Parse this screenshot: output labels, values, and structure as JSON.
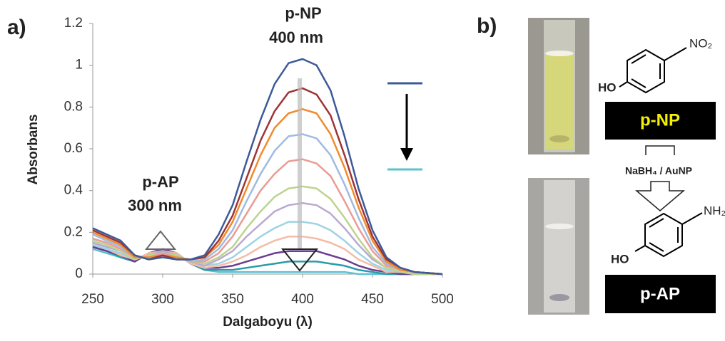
{
  "chart_data": {
    "type": "line",
    "panel_label": "a)",
    "annotations": [
      "p-NP",
      "400 nm",
      "p-AP",
      "300 nm"
    ],
    "xlabel": "Dalgaboyu (λ)",
    "ylabel": "Absorbans",
    "x": [
      250,
      260,
      270,
      280,
      290,
      300,
      310,
      320,
      330,
      340,
      350,
      360,
      370,
      380,
      390,
      400,
      410,
      420,
      430,
      440,
      450,
      460,
      470,
      480,
      500
    ],
    "xlim": [
      250,
      500
    ],
    "xticks": [
      250,
      300,
      350,
      400,
      450,
      500
    ],
    "ylim": [
      0,
      1.2
    ],
    "yticks": [
      0,
      0.2,
      0.4,
      0.6,
      0.8,
      1,
      1.2
    ],
    "series": [
      {
        "color": "#3b5b98",
        "values": [
          0.22,
          0.19,
          0.16,
          0.09,
          0.07,
          0.08,
          0.07,
          0.07,
          0.09,
          0.19,
          0.33,
          0.54,
          0.74,
          0.91,
          1.01,
          1.03,
          1.0,
          0.88,
          0.66,
          0.41,
          0.21,
          0.08,
          0.03,
          0.01,
          0
        ]
      },
      {
        "color": "#9e3434",
        "values": [
          0.21,
          0.18,
          0.15,
          0.09,
          0.07,
          0.09,
          0.07,
          0.07,
          0.08,
          0.16,
          0.28,
          0.46,
          0.64,
          0.78,
          0.87,
          0.89,
          0.86,
          0.76,
          0.57,
          0.36,
          0.18,
          0.07,
          0.03,
          0.01,
          0
        ]
      },
      {
        "color": "#f18a2e",
        "values": [
          0.2,
          0.17,
          0.14,
          0.08,
          0.08,
          0.09,
          0.08,
          0.07,
          0.08,
          0.14,
          0.25,
          0.41,
          0.57,
          0.7,
          0.77,
          0.79,
          0.77,
          0.67,
          0.51,
          0.32,
          0.16,
          0.06,
          0.02,
          0.01,
          0
        ]
      },
      {
        "color": "#9fbbe2",
        "values": [
          0.19,
          0.16,
          0.13,
          0.08,
          0.08,
          0.09,
          0.08,
          0.06,
          0.07,
          0.12,
          0.21,
          0.35,
          0.48,
          0.59,
          0.66,
          0.67,
          0.65,
          0.57,
          0.43,
          0.27,
          0.13,
          0.05,
          0.02,
          0.01,
          0
        ]
      },
      {
        "color": "#e99c93",
        "values": [
          0.17,
          0.15,
          0.12,
          0.08,
          0.08,
          0.1,
          0.08,
          0.06,
          0.06,
          0.1,
          0.18,
          0.29,
          0.4,
          0.48,
          0.54,
          0.55,
          0.53,
          0.47,
          0.35,
          0.22,
          0.11,
          0.04,
          0.02,
          0.01,
          0
        ]
      },
      {
        "color": "#bcd38e",
        "values": [
          0.16,
          0.14,
          0.11,
          0.07,
          0.09,
          0.1,
          0.09,
          0.06,
          0.05,
          0.08,
          0.13,
          0.22,
          0.3,
          0.37,
          0.41,
          0.42,
          0.41,
          0.36,
          0.27,
          0.17,
          0.08,
          0.03,
          0.01,
          0,
          0
        ]
      },
      {
        "color": "#b9a9d2",
        "values": [
          0.15,
          0.13,
          0.11,
          0.07,
          0.09,
          0.11,
          0.09,
          0.06,
          0.04,
          0.07,
          0.11,
          0.18,
          0.24,
          0.3,
          0.33,
          0.34,
          0.33,
          0.29,
          0.22,
          0.14,
          0.07,
          0.03,
          0.01,
          0,
          0
        ]
      },
      {
        "color": "#9dd3e3",
        "values": [
          0.14,
          0.12,
          0.1,
          0.07,
          0.09,
          0.11,
          0.09,
          0.06,
          0.04,
          0.05,
          0.08,
          0.13,
          0.18,
          0.22,
          0.25,
          0.25,
          0.24,
          0.21,
          0.16,
          0.1,
          0.05,
          0.02,
          0.01,
          0,
          0
        ]
      },
      {
        "color": "#f4bca4",
        "values": [
          0.14,
          0.12,
          0.09,
          0.07,
          0.1,
          0.11,
          0.1,
          0.05,
          0.03,
          0.04,
          0.06,
          0.09,
          0.13,
          0.16,
          0.18,
          0.18,
          0.17,
          0.15,
          0.12,
          0.07,
          0.04,
          0.01,
          0.01,
          0,
          0
        ]
      },
      {
        "color": "#6b3c8f",
        "values": [
          0.13,
          0.11,
          0.09,
          0.06,
          0.1,
          0.12,
          0.1,
          0.05,
          0.03,
          0.03,
          0.04,
          0.06,
          0.08,
          0.1,
          0.11,
          0.11,
          0.11,
          0.09,
          0.07,
          0.04,
          0.02,
          0.01,
          0,
          0,
          0
        ]
      },
      {
        "color": "#2b9ba9",
        "values": [
          0.13,
          0.11,
          0.08,
          0.06,
          0.1,
          0.12,
          0.1,
          0.05,
          0.02,
          0.02,
          0.02,
          0.03,
          0.04,
          0.05,
          0.06,
          0.06,
          0.06,
          0.05,
          0.04,
          0.02,
          0.01,
          0,
          0,
          0,
          0
        ]
      },
      {
        "color": "#5cc2d2",
        "values": [
          0.12,
          0.1,
          0.08,
          0.06,
          0.1,
          0.12,
          0.1,
          0.05,
          0.02,
          0.01,
          0.01,
          0.01,
          0.01,
          0.01,
          0.01,
          0.01,
          0.01,
          0.01,
          0.01,
          0,
          0,
          0,
          0,
          0,
          0
        ]
      }
    ]
  },
  "scheme": {
    "panel_label": "b)",
    "nitro_group": "NO₂",
    "amino_group": "NH₂",
    "hydroxyl_top": "HO",
    "hydroxyl_bottom": "HO",
    "reactant": "p-NP",
    "reagent": "NaBH₄ / AuNP",
    "product": "p-AP"
  }
}
